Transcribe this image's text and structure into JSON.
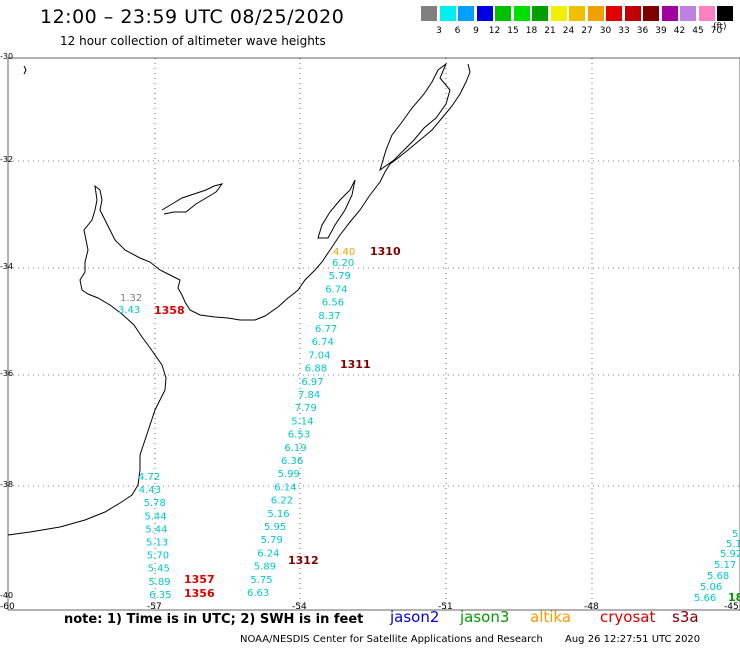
{
  "title": "12:00 – 23:59 UTC 08/25/2020",
  "subtitle": "12 hour collection of altimeter wave heights",
  "scale": {
    "unit": "(ft)",
    "colors": [
      "#808080",
      "#00f0f0",
      "#00a0ff",
      "#0000e0",
      "#00c000",
      "#00e000",
      "#00a000",
      "#f0f000",
      "#f0c000",
      "#f0a000",
      "#e00000",
      "#c00000",
      "#800000",
      "#a000a0",
      "#c080e0",
      "#ff80c0",
      "#000000"
    ],
    "labels": [
      "3",
      "6",
      "9",
      "12",
      "15",
      "18",
      "21",
      "24",
      "27",
      "30",
      "33",
      "36",
      "39",
      "42",
      "45",
      "70"
    ]
  },
  "lat_labels": [
    "-30",
    "-32",
    "-34",
    "-36",
    "-38",
    "-40"
  ],
  "lon_labels": [
    "-60",
    "-57",
    "-54",
    "-51",
    "-48",
    "-45"
  ],
  "note": "note: 1) Time is in UTC; 2) SWH is in feet",
  "satellites": [
    {
      "name": "jason2",
      "color": "#0000dd"
    },
    {
      "name": "jason3",
      "color": "#009900"
    },
    {
      "name": "altika",
      "color": "#ff9900"
    },
    {
      "name": "cryosat",
      "color": "#dd0000"
    },
    {
      "name": "s3a",
      "color": "#800000"
    }
  ],
  "credit": "NOAA/NESDIS Center for Satellite Applications and Research",
  "timestamp": "Aug 26 12:27:51 UTC 2020",
  "tracks": {
    "track_a": [
      "6.20",
      "5.79",
      "6.74",
      "6.56",
      "8.37",
      "6.77",
      "6.74",
      "7.04",
      "6.88",
      "6.97",
      "7.84",
      "7.79",
      "5.14",
      "6.53",
      "6.19",
      "6.36",
      "5.99",
      "6.14",
      "6.22",
      "5.16",
      "5.95",
      "5.79",
      "6.24",
      "5.89",
      "5.75",
      "6.63"
    ],
    "track_a_top": "4.40",
    "track_b": [
      "4.72",
      "4.43",
      "5.78",
      "5.44",
      "5.44",
      "5.13",
      "5.70",
      "5.45",
      "5.89",
      "6.35"
    ],
    "plate": [
      "1.32",
      "3.43"
    ],
    "track_c": [
      "5.",
      "5.1",
      "5.92",
      "5.17",
      "5.68",
      "5.06",
      "5.66"
    ],
    "track_c_green": "18",
    "pass_labels": [
      "1310",
      "1358",
      "1311",
      "1312",
      "1357",
      "1356"
    ]
  }
}
